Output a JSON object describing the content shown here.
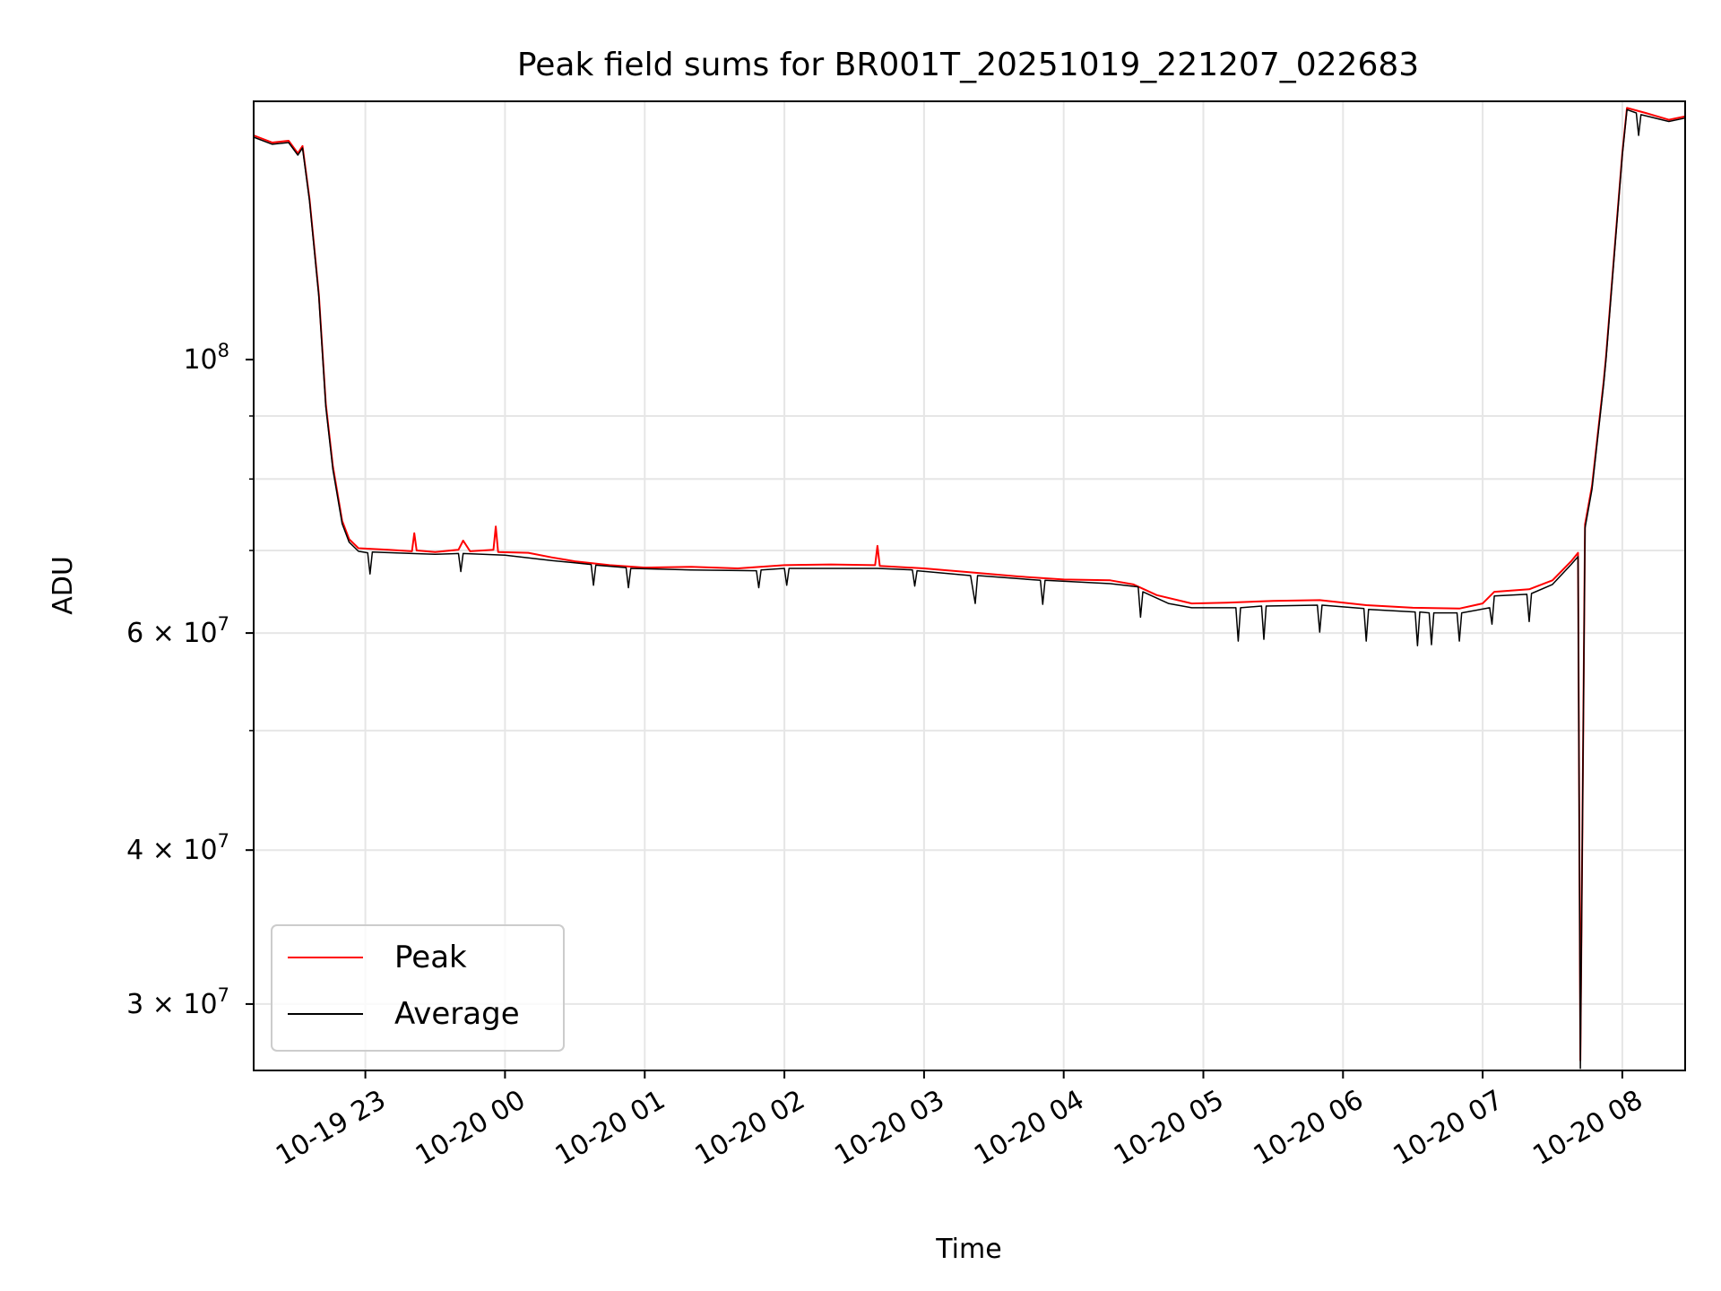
{
  "chart_data": {
    "type": "line",
    "title": "Peak field sums for BR001T_20251019_221207_022683",
    "xlabel": "Time",
    "ylabel": "ADU",
    "yscale": "log",
    "grid": true,
    "legend_position": "lower-left",
    "xlim": [
      "2025-10-19 22:12",
      "2025-10-20 08:27"
    ],
    "ylim": [
      26500000,
      162000000
    ],
    "x_ticks": [
      {
        "label": "10-19 23",
        "time": "2025-10-19 23:00"
      },
      {
        "label": "10-20 00",
        "time": "2025-10-20 00:00"
      },
      {
        "label": "10-20 01",
        "time": "2025-10-20 01:00"
      },
      {
        "label": "10-20 02",
        "time": "2025-10-20 02:00"
      },
      {
        "label": "10-20 03",
        "time": "2025-10-20 03:00"
      },
      {
        "label": "10-20 04",
        "time": "2025-10-20 04:00"
      },
      {
        "label": "10-20 05",
        "time": "2025-10-20 05:00"
      },
      {
        "label": "10-20 06",
        "time": "2025-10-20 06:00"
      },
      {
        "label": "10-20 07",
        "time": "2025-10-20 07:00"
      },
      {
        "label": "10-20 08",
        "time": "2025-10-20 08:00"
      }
    ],
    "y_ticks": [
      {
        "label": "10^8",
        "value": 100000000,
        "base": "10",
        "exp": "8"
      },
      {
        "label": "6×10^7",
        "value": 60000000,
        "base": "6 × 10",
        "exp": "7"
      },
      {
        "label": "4×10^7",
        "value": 40000000,
        "base": "4 × 10",
        "exp": "7"
      },
      {
        "label": "3×10^7",
        "value": 30000000,
        "base": "3 × 10",
        "exp": "7"
      }
    ],
    "y_minor_ticks": [
      30000000,
      40000000,
      50000000,
      60000000,
      70000000,
      80000000,
      90000000
    ],
    "series": [
      {
        "name": "Peak",
        "color": "#ff0000",
        "points": [
          [
            "2025-10-19 22:12",
            152000000
          ],
          [
            "2025-10-19 22:20",
            150000000
          ],
          [
            "2025-10-19 22:27",
            150500000
          ],
          [
            "2025-10-19 22:31",
            147000000
          ],
          [
            "2025-10-19 22:33",
            149000000
          ],
          [
            "2025-10-19 22:36",
            135000000
          ],
          [
            "2025-10-19 22:40",
            113000000
          ],
          [
            "2025-10-19 22:43",
            92000000
          ],
          [
            "2025-10-19 22:46",
            82000000
          ],
          [
            "2025-10-19 22:50",
            74000000
          ],
          [
            "2025-10-19 22:53",
            71500000
          ],
          [
            "2025-10-19 22:57",
            70300000
          ],
          [
            "2025-10-19 23:10",
            70100000
          ],
          [
            "2025-10-19 23:20",
            69900000
          ],
          [
            "2025-10-19 23:21",
            72300000
          ],
          [
            "2025-10-19 23:22",
            70000000
          ],
          [
            "2025-10-19 23:30",
            69800000
          ],
          [
            "2025-10-19 23:40",
            70100000
          ],
          [
            "2025-10-19 23:42",
            71300000
          ],
          [
            "2025-10-19 23:45",
            69900000
          ],
          [
            "2025-10-19 23:55",
            70100000
          ],
          [
            "2025-10-19 23:56",
            73200000
          ],
          [
            "2025-10-19 23:57",
            69800000
          ],
          [
            "2025-10-20 00:10",
            69700000
          ],
          [
            "2025-10-20 00:20",
            69100000
          ],
          [
            "2025-10-20 00:30",
            68600000
          ],
          [
            "2025-10-20 00:45",
            68100000
          ],
          [
            "2025-10-20 01:00",
            67800000
          ],
          [
            "2025-10-20 01:20",
            67900000
          ],
          [
            "2025-10-20 01:40",
            67700000
          ],
          [
            "2025-10-20 02:00",
            68100000
          ],
          [
            "2025-10-20 02:20",
            68200000
          ],
          [
            "2025-10-20 02:39",
            68100000
          ],
          [
            "2025-10-20 02:40",
            70600000
          ],
          [
            "2025-10-20 02:41",
            68000000
          ],
          [
            "2025-10-20 03:00",
            67700000
          ],
          [
            "2025-10-20 03:20",
            67200000
          ],
          [
            "2025-10-20 03:40",
            66700000
          ],
          [
            "2025-10-20 04:00",
            66300000
          ],
          [
            "2025-10-20 04:20",
            66200000
          ],
          [
            "2025-10-20 04:30",
            65700000
          ],
          [
            "2025-10-20 04:40",
            64400000
          ],
          [
            "2025-10-20 04:55",
            63400000
          ],
          [
            "2025-10-20 05:10",
            63500000
          ],
          [
            "2025-10-20 05:30",
            63700000
          ],
          [
            "2025-10-20 05:50",
            63800000
          ],
          [
            "2025-10-20 06:10",
            63200000
          ],
          [
            "2025-10-20 06:30",
            62900000
          ],
          [
            "2025-10-20 06:50",
            62800000
          ],
          [
            "2025-10-20 07:00",
            63400000
          ],
          [
            "2025-10-20 07:05",
            64800000
          ],
          [
            "2025-10-20 07:20",
            65100000
          ],
          [
            "2025-10-20 07:30",
            66200000
          ],
          [
            "2025-10-20 07:38",
            68600000
          ],
          [
            "2025-10-20 07:41",
            69700000
          ],
          [
            "2025-10-20 07:42",
            27000000
          ],
          [
            "2025-10-20 07:44",
            73500000
          ],
          [
            "2025-10-20 07:47",
            79000000
          ],
          [
            "2025-10-20 07:52",
            96000000
          ],
          [
            "2025-10-20 07:53",
            100500000
          ],
          [
            "2025-10-20 07:57",
            125000000
          ],
          [
            "2025-10-20 08:00",
            147000000
          ],
          [
            "2025-10-20 08:02",
            160000000
          ],
          [
            "2025-10-20 08:10",
            158500000
          ],
          [
            "2025-10-20 08:20",
            156500000
          ],
          [
            "2025-10-20 08:27",
            157500000
          ]
        ]
      },
      {
        "name": "Average",
        "color": "#000000",
        "points": [
          [
            "2025-10-19 22:12",
            151500000
          ],
          [
            "2025-10-19 22:20",
            149500000
          ],
          [
            "2025-10-19 22:27",
            150000000
          ],
          [
            "2025-10-19 22:31",
            146500000
          ],
          [
            "2025-10-19 22:33",
            148500000
          ],
          [
            "2025-10-19 22:36",
            134500000
          ],
          [
            "2025-10-19 22:40",
            112500000
          ],
          [
            "2025-10-19 22:43",
            91500000
          ],
          [
            "2025-10-19 22:46",
            81500000
          ],
          [
            "2025-10-19 22:50",
            73600000
          ],
          [
            "2025-10-19 22:53",
            71100000
          ],
          [
            "2025-10-19 22:57",
            69900000
          ],
          [
            "2025-10-19 23:01",
            69700000
          ],
          [
            "2025-10-19 23:02",
            67000000
          ],
          [
            "2025-10-19 23:03",
            69800000
          ],
          [
            "2025-10-19 23:20",
            69600000
          ],
          [
            "2025-10-19 23:30",
            69500000
          ],
          [
            "2025-10-19 23:40",
            69600000
          ],
          [
            "2025-10-19 23:41",
            67300000
          ],
          [
            "2025-10-19 23:42",
            69600000
          ],
          [
            "2025-10-20 00:00",
            69400000
          ],
          [
            "2025-10-20 00:20",
            68700000
          ],
          [
            "2025-10-20 00:37",
            68200000
          ],
          [
            "2025-10-20 00:38",
            65600000
          ],
          [
            "2025-10-20 00:39",
            68100000
          ],
          [
            "2025-10-20 00:52",
            67800000
          ],
          [
            "2025-10-20 00:53",
            65300000
          ],
          [
            "2025-10-20 00:54",
            67700000
          ],
          [
            "2025-10-20 01:20",
            67500000
          ],
          [
            "2025-10-20 01:48",
            67400000
          ],
          [
            "2025-10-20 01:49",
            65300000
          ],
          [
            "2025-10-20 01:50",
            67500000
          ],
          [
            "2025-10-20 02:00",
            67700000
          ],
          [
            "2025-10-20 02:01",
            65600000
          ],
          [
            "2025-10-20 02:02",
            67700000
          ],
          [
            "2025-10-20 02:40",
            67700000
          ],
          [
            "2025-10-20 02:55",
            67500000
          ],
          [
            "2025-10-20 02:56",
            65500000
          ],
          [
            "2025-10-20 02:57",
            67400000
          ],
          [
            "2025-10-20 03:20",
            66800000
          ],
          [
            "2025-10-20 03:22",
            63400000
          ],
          [
            "2025-10-20 03:23",
            66800000
          ],
          [
            "2025-10-20 03:50",
            66200000
          ],
          [
            "2025-10-20 03:51",
            63300000
          ],
          [
            "2025-10-20 03:52",
            66200000
          ],
          [
            "2025-10-20 04:20",
            65800000
          ],
          [
            "2025-10-20 04:32",
            65400000
          ],
          [
            "2025-10-20 04:33",
            61800000
          ],
          [
            "2025-10-20 04:34",
            64800000
          ],
          [
            "2025-10-20 04:45",
            63400000
          ],
          [
            "2025-10-20 04:55",
            62900000
          ],
          [
            "2025-10-20 05:14",
            62900000
          ],
          [
            "2025-10-20 05:15",
            59100000
          ],
          [
            "2025-10-20 05:16",
            62900000
          ],
          [
            "2025-10-20 05:25",
            63100000
          ],
          [
            "2025-10-20 05:26",
            59300000
          ],
          [
            "2025-10-20 05:27",
            63100000
          ],
          [
            "2025-10-20 05:49",
            63200000
          ],
          [
            "2025-10-20 05:50",
            60100000
          ],
          [
            "2025-10-20 05:51",
            63200000
          ],
          [
            "2025-10-20 06:09",
            62800000
          ],
          [
            "2025-10-20 06:10",
            59100000
          ],
          [
            "2025-10-20 06:11",
            62700000
          ],
          [
            "2025-10-20 06:31",
            62400000
          ],
          [
            "2025-10-20 06:32",
            58600000
          ],
          [
            "2025-10-20 06:33",
            62400000
          ],
          [
            "2025-10-20 06:37",
            62300000
          ],
          [
            "2025-10-20 06:38",
            58700000
          ],
          [
            "2025-10-20 06:39",
            62300000
          ],
          [
            "2025-10-20 06:49",
            62300000
          ],
          [
            "2025-10-20 06:50",
            59100000
          ],
          [
            "2025-10-20 06:51",
            62300000
          ],
          [
            "2025-10-20 07:03",
            62900000
          ],
          [
            "2025-10-20 07:04",
            61000000
          ],
          [
            "2025-10-20 07:05",
            64300000
          ],
          [
            "2025-10-20 07:19",
            64500000
          ],
          [
            "2025-10-20 07:20",
            61300000
          ],
          [
            "2025-10-20 07:21",
            64600000
          ],
          [
            "2025-10-20 07:30",
            65700000
          ],
          [
            "2025-10-20 07:38",
            68200000
          ],
          [
            "2025-10-20 07:41",
            69200000
          ],
          [
            "2025-10-20 07:42",
            26600000
          ],
          [
            "2025-10-20 07:44",
            73000000
          ],
          [
            "2025-10-20 07:47",
            78500000
          ],
          [
            "2025-10-20 07:52",
            95500000
          ],
          [
            "2025-10-20 07:53",
            100000000
          ],
          [
            "2025-10-20 07:57",
            124500000
          ],
          [
            "2025-10-20 08:00",
            146500000
          ],
          [
            "2025-10-20 08:02",
            159500000
          ],
          [
            "2025-10-20 08:06",
            158500000
          ],
          [
            "2025-10-20 08:07",
            152000000
          ],
          [
            "2025-10-20 08:08",
            158000000
          ],
          [
            "2025-10-20 08:20",
            156000000
          ],
          [
            "2025-10-20 08:27",
            157000000
          ]
        ]
      }
    ]
  }
}
